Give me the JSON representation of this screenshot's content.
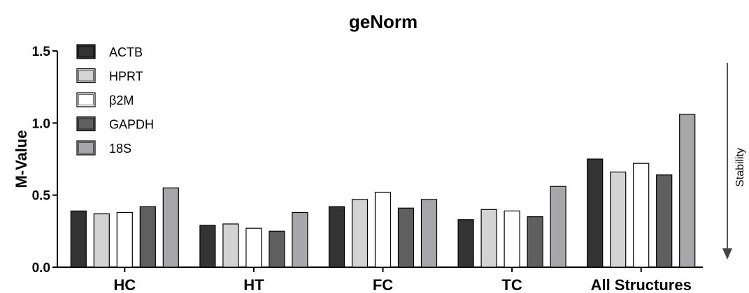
{
  "chart_data": {
    "type": "bar",
    "title": "geNorm",
    "ylabel": "M-Value",
    "xlabel": "",
    "side_label": "Stability",
    "ylim": [
      0,
      1.5
    ],
    "yticks": [
      "0.0",
      "0.5",
      "1.0",
      "1.5"
    ],
    "ytick_values": [
      0,
      0.5,
      1.0,
      1.5
    ],
    "categories": [
      "HC",
      "HT",
      "FC",
      "TC",
      "All Structures"
    ],
    "grid": false,
    "legend_position": "top-left",
    "series": [
      {
        "name": "ACTB",
        "color": "#333333",
        "values": [
          0.39,
          0.29,
          0.42,
          0.33,
          0.75
        ]
      },
      {
        "name": "HPRT",
        "color": "#d3d3d3",
        "values": [
          0.37,
          0.3,
          0.47,
          0.4,
          0.66
        ]
      },
      {
        "name": "β2M",
        "color": "#ffffff",
        "values": [
          0.38,
          0.27,
          0.52,
          0.39,
          0.72
        ]
      },
      {
        "name": "GAPDH",
        "color": "#5f5f5f",
        "values": [
          0.42,
          0.25,
          0.41,
          0.35,
          0.64
        ]
      },
      {
        "name": "18S",
        "color": "#a6a6ab",
        "values": [
          0.55,
          0.38,
          0.47,
          0.56,
          1.06
        ]
      }
    ]
  }
}
